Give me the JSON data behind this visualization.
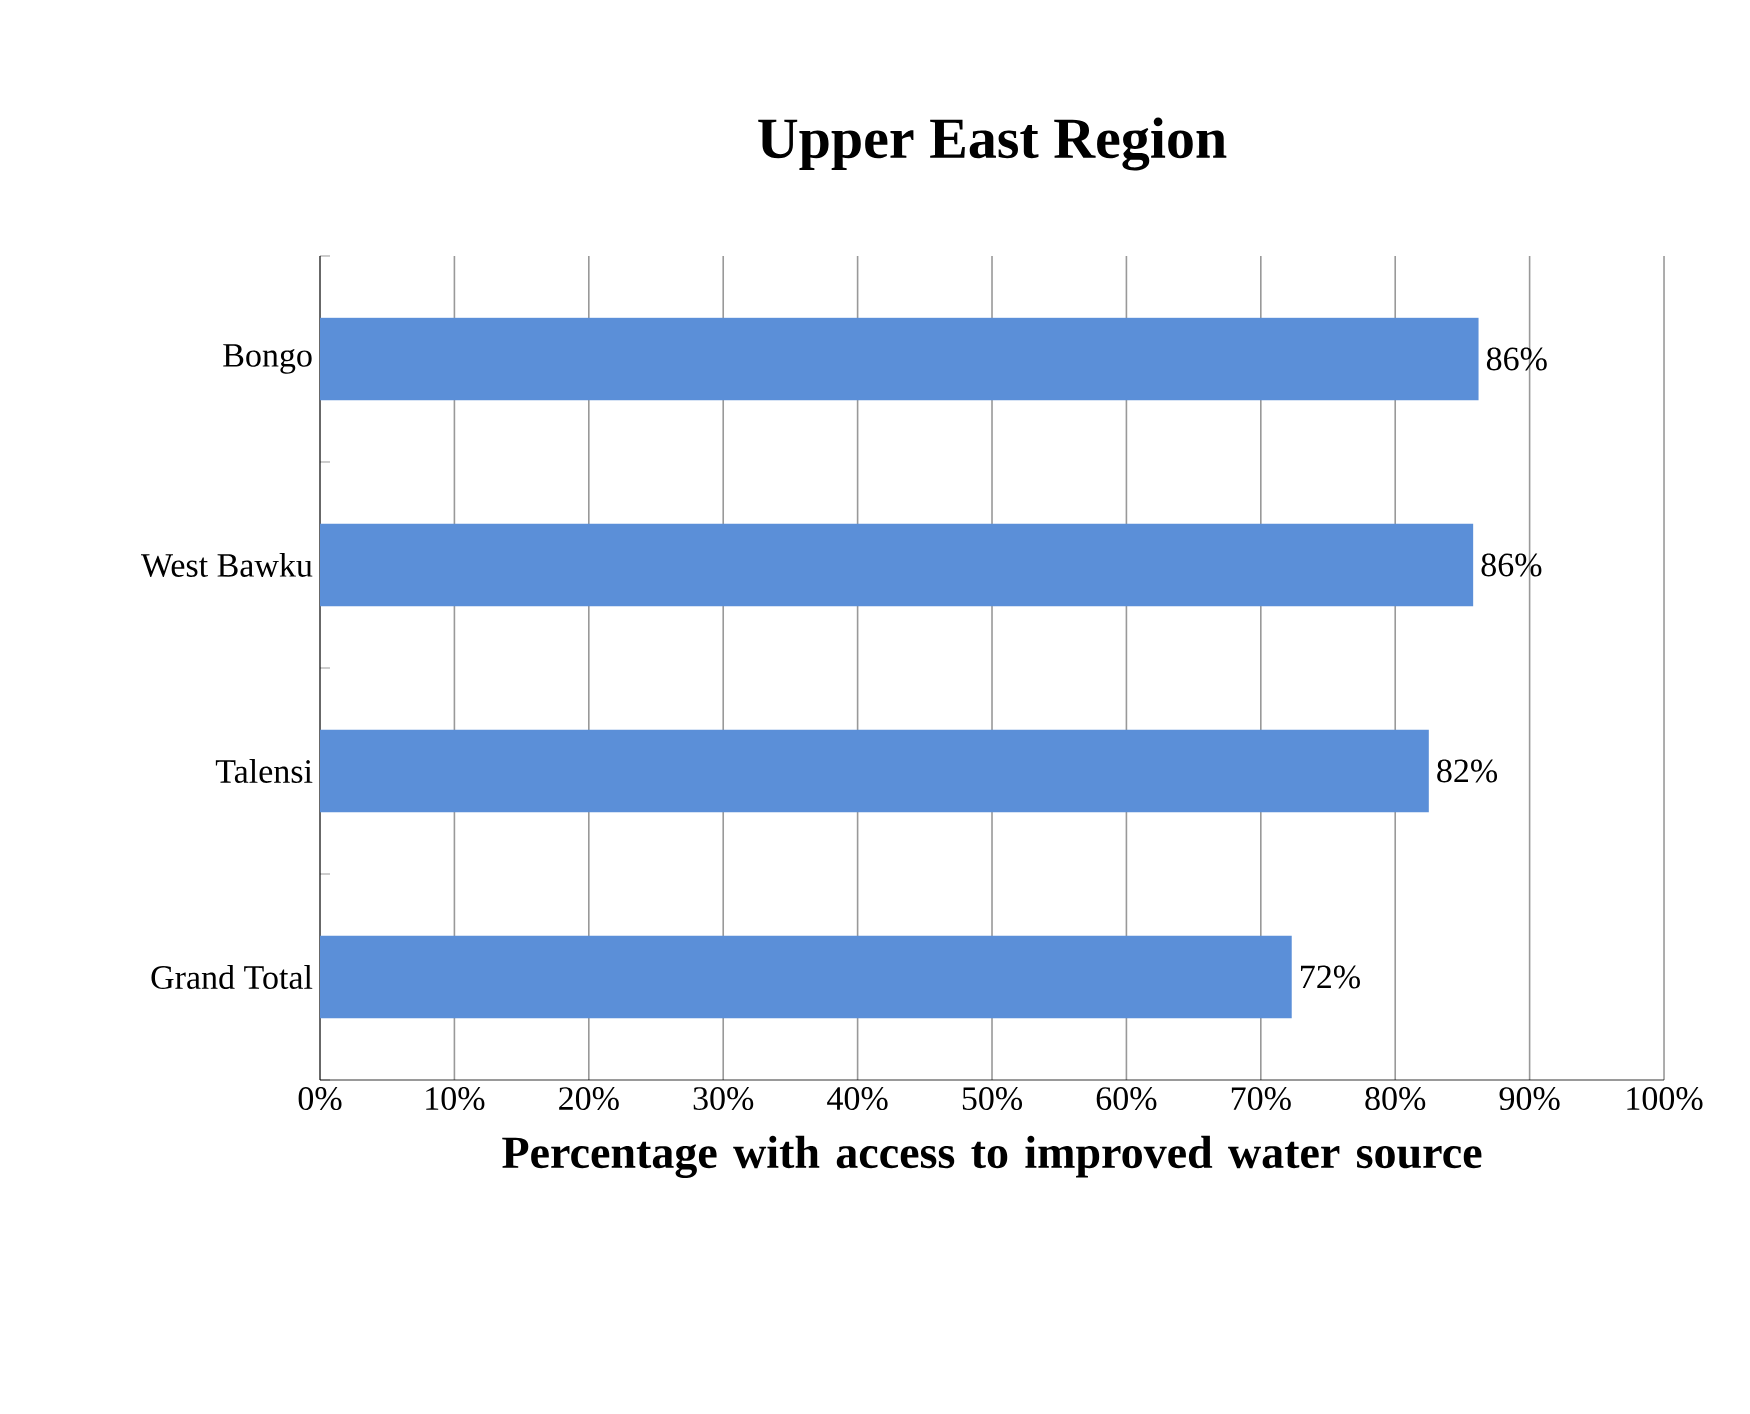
{
  "chart_data": {
    "type": "bar",
    "orientation": "horizontal",
    "title": "Upper East Region",
    "xlabel": "Percentage with access to improved water source",
    "categories": [
      "Bongo",
      "West Bawku",
      "Talensi",
      "Grand Total"
    ],
    "values": [
      86.2,
      85.8,
      82.5,
      72.3
    ],
    "value_labels": [
      "86%",
      "86%",
      "82%",
      "72%"
    ],
    "color": "#5b8fd8",
    "xlim": [
      0,
      100
    ],
    "xticks": [
      {
        "value": 0,
        "label": "0%"
      },
      {
        "value": 10,
        "label": "10%"
      },
      {
        "value": 20,
        "label": "20%"
      },
      {
        "value": 30,
        "label": "30%"
      },
      {
        "value": 40,
        "label": "40%"
      },
      {
        "value": 50,
        "label": "50%"
      },
      {
        "value": 60,
        "label": "60%"
      },
      {
        "value": 70,
        "label": "70%"
      },
      {
        "value": 80,
        "label": "80%"
      },
      {
        "value": 90,
        "label": "90%"
      },
      {
        "value": 100,
        "label": "100%"
      }
    ],
    "grid": "x"
  }
}
